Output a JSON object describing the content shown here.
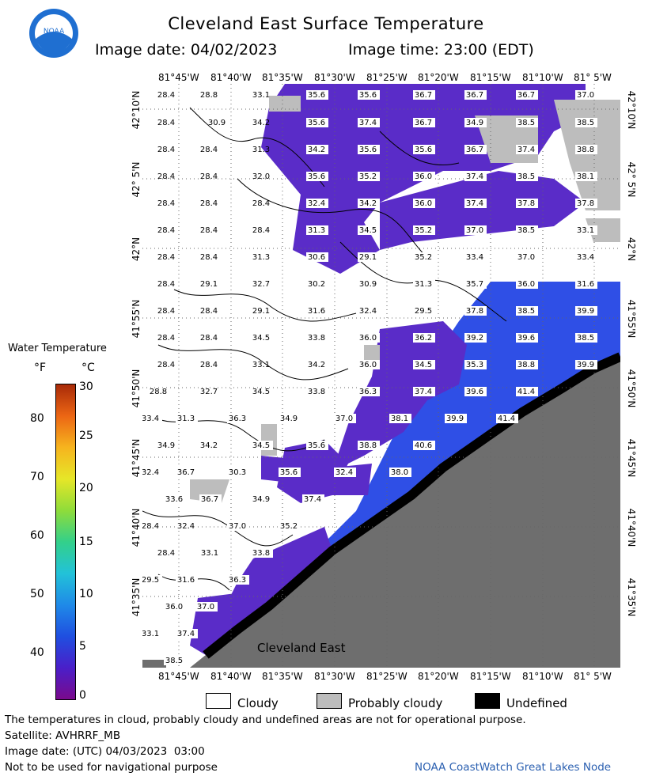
{
  "header": {
    "title": "Cleveland East Surface Temperature",
    "image_date": "Image date: 04/02/2023",
    "image_time": "Image time: 23:00 (EDT)",
    "logo_text": "NOAA"
  },
  "map": {
    "region_label": "Cleveland East",
    "longitude_labels": [
      "81°45'W",
      "81°40'W",
      "81°35'W",
      "81°30'W",
      "81°25'W",
      "81°20'W",
      "81°15'W",
      "81°10'W",
      "81° 5'W"
    ],
    "latitude_labels": [
      "42°10'N",
      "42° 5'N",
      "42°N",
      "41°55'N",
      "41°50'N",
      "41°45'N",
      "41°40'N",
      "41°35'N"
    ],
    "temperature_labels": [
      "28.4",
      "28.8",
      "33.1",
      "35.6",
      "35.6",
      "36.7",
      "36.7",
      "36.7",
      "37.0",
      "28.4",
      "30.9",
      "34.2",
      "35.6",
      "37.4",
      "36.7",
      "34.9",
      "38.5",
      "38.5",
      "28.4",
      "28.4",
      "31.3",
      "34.2",
      "35.6",
      "35.6",
      "36.7",
      "37.4",
      "38.8",
      "28.4",
      "28.4",
      "32.0",
      "35.6",
      "35.2",
      "36.0",
      "37.4",
      "38.5",
      "38.1",
      "28.4",
      "28.4",
      "28.4",
      "32.4",
      "34.2",
      "36.0",
      "37.4",
      "37.8",
      "37.8",
      "28.4",
      "28.4",
      "28.4",
      "31.3",
      "34.5",
      "35.2",
      "37.0",
      "38.5",
      "33.1",
      "28.4",
      "28.4",
      "31.3",
      "30.6",
      "29.1",
      "35.2",
      "33.4",
      "37.0",
      "33.4",
      "28.4",
      "29.1",
      "32.7",
      "30.2",
      "30.9",
      "31.3",
      "35.7",
      "36.0",
      "31.6",
      "28.4",
      "28.4",
      "29.1",
      "31.6",
      "32.4",
      "29.5",
      "37.8",
      "38.5",
      "39.9",
      "28.4",
      "28.4",
      "34.5",
      "33.8",
      "36.0",
      "36.2",
      "39.2",
      "39.6",
      "38.5",
      "28.4",
      "28.4",
      "33.1",
      "34.2",
      "36.0",
      "34.5",
      "35.3",
      "38.8",
      "39.9",
      "28.8",
      "32.7",
      "34.5",
      "33.8",
      "36.3",
      "37.4",
      "39.6",
      "41.4",
      "33.4",
      "31.3",
      "36.3",
      "34.9",
      "37.0",
      "38.1",
      "39.9",
      "41.4",
      "34.9",
      "34.2",
      "34.5",
      "35.6",
      "38.8",
      "40.6",
      "32.4",
      "36.7",
      "30.3",
      "35.6",
      "32.4",
      "38.0",
      "33.6",
      "36.7",
      "34.9",
      "37.4",
      "28.4",
      "32.4",
      "37.0",
      "35.2",
      "28.4",
      "33.1",
      "33.8",
      "29.5",
      "31.6",
      "36.3",
      "36.0",
      "37.0",
      "33.1",
      "37.4",
      "38.5"
    ]
  },
  "legend": {
    "title": "Water Temperature",
    "unit_f": "°F",
    "unit_c": "°C",
    "ticks_f": [
      "80",
      "70",
      "60",
      "50",
      "40"
    ],
    "ticks_c": [
      "30",
      "25",
      "20",
      "15",
      "10",
      "5",
      "0"
    ]
  },
  "key": {
    "cloudy": "Cloudy",
    "probably_cloudy": "Probably cloudy",
    "undefined": "Undefined"
  },
  "footer": {
    "note": "The temperatures in cloud, probably cloudy and undefined areas are not for operational purpose.",
    "satellite": "Satellite: AVHRRF_MB",
    "utc_date": "Image date: (UTC) 04/03/2023  03:00",
    "navigation": "Not to be used for navigational purpose",
    "credit": "NOAA CoastWatch Great Lakes Node"
  },
  "colors": {
    "land": "#6e6e6e",
    "undefined": "#000000",
    "probably_cloudy": "#bdbdbd",
    "cloudy": "#ffffff",
    "water_cold": "#5a2cc8",
    "water_warm": "#2f4fe6",
    "credit": "#2a5fb0"
  }
}
